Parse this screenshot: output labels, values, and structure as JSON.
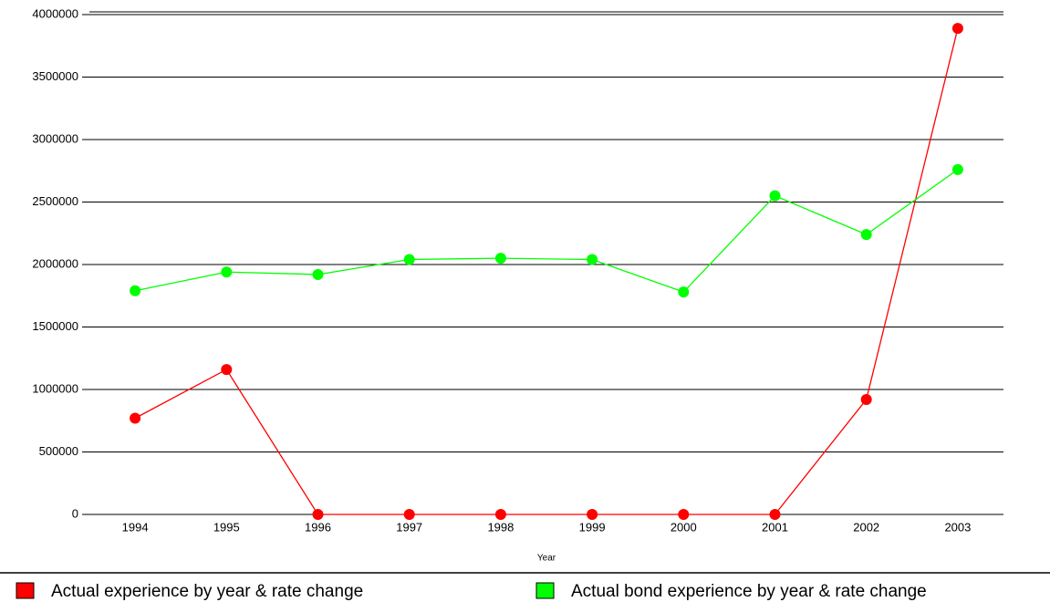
{
  "chart_data": {
    "type": "line",
    "x_label": "Year",
    "categories": [
      "1994",
      "1995",
      "1996",
      "1997",
      "1998",
      "1999",
      "2000",
      "2001",
      "2002",
      "2003"
    ],
    "series": [
      {
        "name": "Actual experience by year & rate change",
        "color": "#ff0000",
        "values": [
          770000,
          1160000,
          0,
          0,
          0,
          0,
          0,
          0,
          920000,
          3890000
        ]
      },
      {
        "name": "Actual bond experience by year & rate change",
        "color": "#00ff00",
        "values": [
          1790000,
          1940000,
          1920000,
          2040000,
          2050000,
          2040000,
          1780000,
          2550000,
          2240000,
          2760000
        ]
      }
    ],
    "ylim": [
      0,
      4000000
    ],
    "yticks": [
      0,
      500000,
      1000000,
      1500000,
      2000000,
      2500000,
      3000000,
      3500000,
      4000000
    ],
    "grid": true,
    "legend": "bottom"
  }
}
